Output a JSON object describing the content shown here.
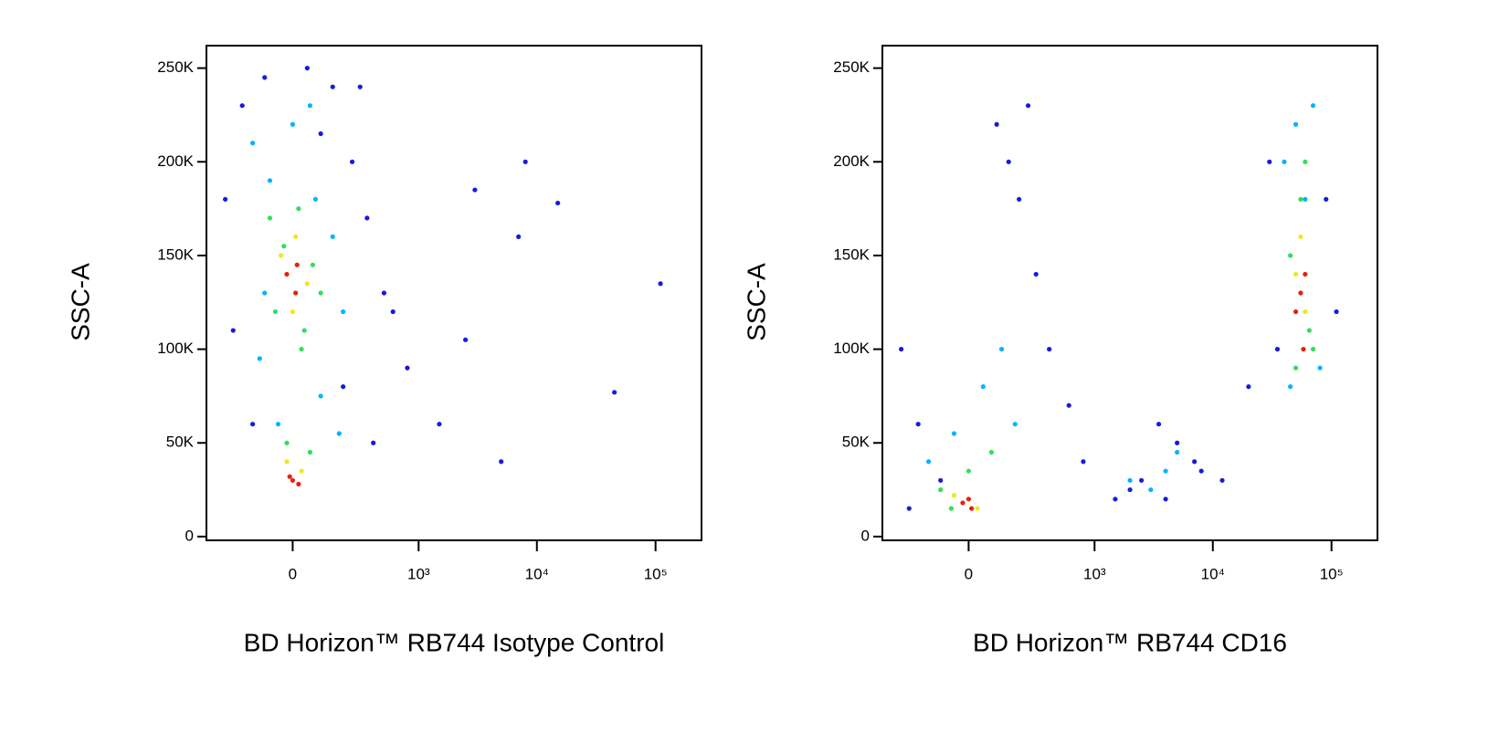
{
  "chart_data": [
    {
      "type": "scatter",
      "xlabel": "BD Horizon™ RB744 Isotype Control",
      "ylabel": "SSC-A",
      "xscale": "arcsinh",
      "xlim": [
        -450,
        244000
      ],
      "ylim": [
        -2000,
        262000
      ],
      "xticks": [
        0,
        {
          "value": 1000,
          "label": "10³"
        },
        {
          "value": 10000,
          "label": "10⁴"
        },
        {
          "value": 100000,
          "label": "10⁵"
        }
      ],
      "yticks": [
        0,
        {
          "value": 50000,
          "label": "50K"
        },
        {
          "value": 100000,
          "label": "100K"
        },
        {
          "value": 150000,
          "label": "150K"
        },
        {
          "value": 200000,
          "label": "200K"
        },
        {
          "value": 250000,
          "label": "250K"
        }
      ],
      "series": [
        {
          "color": "#1a1adc",
          "x": [
            -300,
            -200,
            -100,
            50,
            150,
            250,
            350,
            500,
            800,
            1500,
            3000,
            5000,
            8000,
            15000,
            45000,
            110000,
            -250,
            200,
            400,
            -150,
            100,
            300,
            600,
            2500,
            7000
          ],
          "values": [
            180000,
            230000,
            245000,
            250000,
            240000,
            200000,
            170000,
            130000,
            90000,
            60000,
            185000,
            40000,
            200000,
            178000,
            77000,
            135000,
            110000,
            80000,
            50000,
            60000,
            215000,
            240000,
            120000,
            105000,
            160000
          ]
        },
        {
          "color": "#00b4ff",
          "x": [
            -150,
            -80,
            0,
            80,
            150,
            200,
            -120,
            100,
            -50,
            180,
            60,
            -100
          ],
          "values": [
            210000,
            190000,
            220000,
            180000,
            160000,
            120000,
            95000,
            75000,
            60000,
            55000,
            230000,
            130000
          ]
        },
        {
          "color": "#2ee05a",
          "x": [
            -80,
            -30,
            20,
            70,
            -60,
            40,
            100,
            -20,
            60,
            30
          ],
          "values": [
            170000,
            155000,
            175000,
            145000,
            120000,
            110000,
            130000,
            50000,
            45000,
            100000
          ]
        },
        {
          "color": "#f0e81c",
          "x": [
            -40,
            10,
            50,
            -20,
            30,
            0
          ],
          "values": [
            150000,
            160000,
            135000,
            40000,
            35000,
            120000
          ]
        },
        {
          "color": "#e8200c",
          "x": [
            -20,
            10,
            -10,
            20,
            0,
            15
          ],
          "values": [
            140000,
            130000,
            32000,
            28000,
            30000,
            145000
          ]
        }
      ]
    },
    {
      "type": "scatter",
      "xlabel": "BD Horizon™ RB744 CD16",
      "ylabel": "SSC-A",
      "xscale": "arcsinh",
      "xlim": [
        -450,
        244000
      ],
      "ylim": [
        -2000,
        262000
      ],
      "xticks": [
        0,
        {
          "value": 1000,
          "label": "10³"
        },
        {
          "value": 10000,
          "label": "10⁴"
        },
        {
          "value": 100000,
          "label": "10⁵"
        }
      ],
      "yticks": [
        0,
        {
          "value": 50000,
          "label": "50K"
        },
        {
          "value": 100000,
          "label": "100K"
        },
        {
          "value": 150000,
          "label": "150K"
        },
        {
          "value": 200000,
          "label": "200K"
        },
        {
          "value": 250000,
          "label": "250K"
        }
      ],
      "series": [
        {
          "color": "#1a1adc",
          "x": [
            -300,
            -200,
            -100,
            100,
            200,
            300,
            400,
            600,
            1500,
            2500,
            3500,
            5000,
            8000,
            12000,
            20000,
            30000,
            90000,
            110000,
            -250,
            150,
            250,
            800,
            2000,
            4000,
            7000,
            35000
          ],
          "values": [
            100000,
            60000,
            30000,
            220000,
            180000,
            140000,
            100000,
            70000,
            20000,
            30000,
            60000,
            50000,
            35000,
            30000,
            80000,
            200000,
            180000,
            120000,
            15000,
            200000,
            230000,
            40000,
            25000,
            20000,
            40000,
            100000
          ]
        },
        {
          "color": "#00b4ff",
          "x": [
            -150,
            -50,
            50,
            120,
            180,
            2000,
            3000,
            4000,
            5000,
            40000,
            50000,
            70000,
            80000,
            45000,
            60000
          ],
          "values": [
            40000,
            55000,
            80000,
            100000,
            60000,
            30000,
            25000,
            35000,
            45000,
            200000,
            220000,
            230000,
            90000,
            80000,
            180000
          ]
        },
        {
          "color": "#2ee05a",
          "x": [
            -100,
            0,
            80,
            -60,
            45000,
            55000,
            65000,
            70000,
            50000,
            60000
          ],
          "values": [
            25000,
            35000,
            45000,
            15000,
            150000,
            180000,
            110000,
            100000,
            90000,
            200000
          ]
        },
        {
          "color": "#f0e81c",
          "x": [
            -50,
            30,
            50000,
            60000,
            55000
          ],
          "values": [
            22000,
            15000,
            140000,
            120000,
            160000
          ]
        },
        {
          "color": "#e8200c",
          "x": [
            -20,
            10,
            0,
            55000,
            60000,
            50000,
            58000
          ],
          "values": [
            18000,
            15000,
            20000,
            130000,
            140000,
            120000,
            100000
          ]
        }
      ]
    }
  ]
}
